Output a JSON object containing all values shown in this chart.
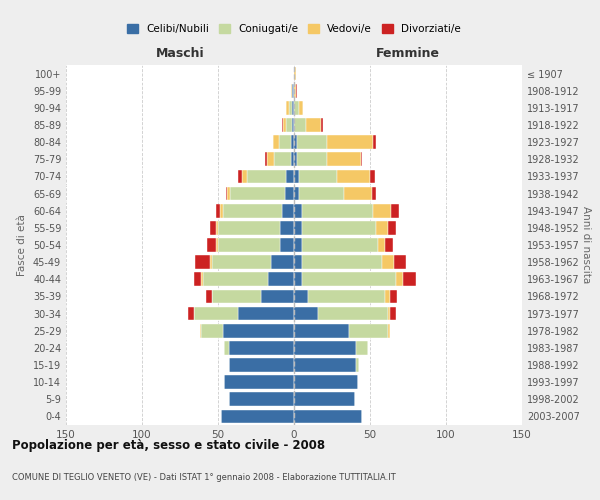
{
  "age_groups": [
    "0-4",
    "5-9",
    "10-14",
    "15-19",
    "20-24",
    "25-29",
    "30-34",
    "35-39",
    "40-44",
    "45-49",
    "50-54",
    "55-59",
    "60-64",
    "65-69",
    "70-74",
    "75-79",
    "80-84",
    "85-89",
    "90-94",
    "95-99",
    "100+"
  ],
  "birth_years": [
    "2003-2007",
    "1998-2002",
    "1993-1997",
    "1988-1992",
    "1983-1987",
    "1978-1982",
    "1973-1977",
    "1968-1972",
    "1963-1967",
    "1958-1962",
    "1953-1957",
    "1948-1952",
    "1943-1947",
    "1938-1942",
    "1933-1937",
    "1928-1932",
    "1923-1927",
    "1918-1922",
    "1913-1917",
    "1908-1912",
    "≤ 1907"
  ],
  "colors": {
    "celibi": "#3a6ea5",
    "coniugati": "#c5d9a0",
    "vedovi": "#f5c865",
    "divorziati": "#cc2222"
  },
  "maschi": {
    "celibi": [
      48,
      43,
      46,
      43,
      43,
      47,
      37,
      22,
      17,
      15,
      9,
      9,
      8,
      6,
      5,
      2,
      2,
      1,
      1,
      1,
      0
    ],
    "coniugati": [
      0,
      0,
      0,
      0,
      3,
      14,
      29,
      32,
      43,
      39,
      41,
      41,
      39,
      36,
      26,
      11,
      8,
      4,
      2,
      0,
      0
    ],
    "vedovi": [
      0,
      0,
      0,
      0,
      0,
      1,
      0,
      0,
      1,
      1,
      1,
      1,
      2,
      2,
      3,
      5,
      4,
      2,
      2,
      1,
      0
    ],
    "divorziati": [
      0,
      0,
      0,
      0,
      0,
      0,
      4,
      4,
      5,
      10,
      6,
      4,
      2,
      1,
      3,
      1,
      0,
      1,
      0,
      0,
      0
    ]
  },
  "femmine": {
    "celibi": [
      45,
      40,
      42,
      41,
      41,
      36,
      16,
      9,
      5,
      5,
      5,
      5,
      5,
      3,
      3,
      2,
      2,
      0,
      0,
      0,
      0
    ],
    "coniugati": [
      0,
      0,
      0,
      2,
      8,
      26,
      46,
      51,
      62,
      53,
      50,
      49,
      47,
      30,
      25,
      20,
      20,
      8,
      3,
      0,
      0
    ],
    "vedovi": [
      0,
      0,
      0,
      0,
      0,
      1,
      1,
      3,
      5,
      8,
      5,
      8,
      12,
      18,
      22,
      22,
      30,
      10,
      3,
      1,
      1
    ],
    "divorziati": [
      0,
      0,
      0,
      0,
      0,
      0,
      4,
      5,
      8,
      8,
      5,
      5,
      5,
      3,
      3,
      1,
      2,
      1,
      0,
      1,
      0
    ]
  },
  "xlim": 150,
  "title": "Popolazione per età, sesso e stato civile - 2008",
  "subtitle": "COMUNE DI TEGLIO VENETO (VE) - Dati ISTAT 1° gennaio 2008 - Elaborazione TUTTITALIA.IT",
  "ylabel": "Fasce di età",
  "ylabel_right": "Anni di nascita",
  "xlabel_maschi": "Maschi",
  "xlabel_femmine": "Femmine",
  "legend_labels": [
    "Celibi/Nubili",
    "Coniugati/e",
    "Vedovi/e",
    "Divorziati/e"
  ],
  "background_color": "#eeeeee",
  "plot_background": "#ffffff"
}
